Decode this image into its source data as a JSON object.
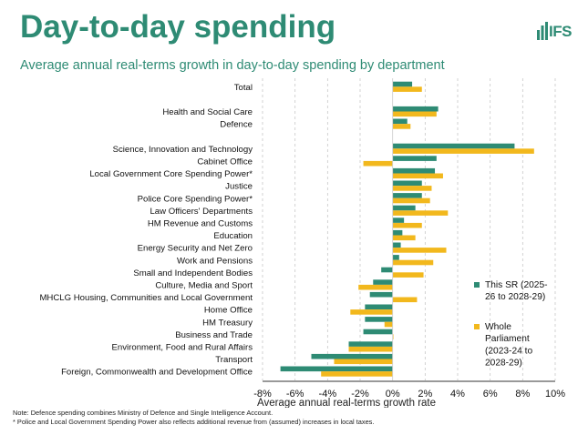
{
  "header": {
    "title": "Day-to-day spending",
    "subtitle": "Average annual real-terms growth in day-to-day spending by department",
    "logo_text": "IFS"
  },
  "footnotes": [
    "Note: Defence spending combines Ministry of Defence and Single Intelligence Account.",
    "* Police and Local Government Spending Power also reflects additional revenue from (assumed) increases in local taxes."
  ],
  "colors": {
    "brand": "#2e8b74",
    "series_sr": "#2e8b74",
    "series_parliament": "#f2b81d",
    "grid": "#c8c8c8",
    "axis": "#333333"
  },
  "chart_data": {
    "type": "bar",
    "orientation": "horizontal",
    "title": "Average annual real-terms growth in day-to-day spending by department",
    "xlabel": "Average annual real-terms growth rate",
    "ylabel": "",
    "xlim": [
      -8,
      10
    ],
    "xticks": [
      "-8%",
      "-6%",
      "-4%",
      "-2%",
      "0%",
      "2%",
      "4%",
      "6%",
      "8%",
      "10%"
    ],
    "tick_values": [
      -8,
      -6,
      -4,
      -2,
      0,
      2,
      4,
      6,
      8,
      10
    ],
    "grid": "vertical dashed",
    "legend_position": "right",
    "categories": [
      "Total",
      "",
      "Health and Social Care",
      "Defence",
      "",
      "Science, Innovation and Technology",
      "Cabinet Office",
      "Local Government Core Spending Power*",
      "Justice",
      "Police Core Spending Power*",
      "Law Officers' Departments",
      "HM Revenue and Customs",
      "Education",
      "Energy Security and Net Zero",
      "Work and Pensions",
      "Small and Independent Bodies",
      "Culture, Media and Sport",
      "MHCLG Housing, Communities and Local Government",
      "Home Office",
      "HM Treasury",
      "Business and Trade",
      "Environment, Food and Rural Affairs",
      "Transport",
      "Foreign, Commonwealth and Development Office"
    ],
    "series": [
      {
        "name": "This SR (2025-26 to 2028-29)",
        "color": "#2e8b74",
        "values": [
          1.2,
          null,
          2.8,
          0.9,
          null,
          7.5,
          2.7,
          2.6,
          1.8,
          1.8,
          1.4,
          0.7,
          0.6,
          0.5,
          0.4,
          -0.7,
          -1.2,
          -1.4,
          -1.7,
          -1.7,
          -1.8,
          -2.7,
          -5.0,
          -6.9
        ]
      },
      {
        "name": "Whole Parliament (2023-24 to 2028-29)",
        "color": "#f2b81d",
        "values": [
          1.8,
          null,
          2.7,
          1.1,
          null,
          8.7,
          -1.8,
          3.1,
          2.4,
          2.3,
          3.4,
          1.8,
          1.4,
          3.3,
          2.5,
          1.9,
          -2.1,
          1.5,
          -2.6,
          -0.5,
          0.05,
          -2.7,
          -3.6,
          -4.4
        ]
      }
    ],
    "legend": [
      {
        "label": "This SR (2025-26 to 2028-29)",
        "color": "#2e8b74"
      },
      {
        "label": "Whole Parliament (2023-24 to 2028-29)",
        "color": "#f2b81d"
      }
    ]
  }
}
